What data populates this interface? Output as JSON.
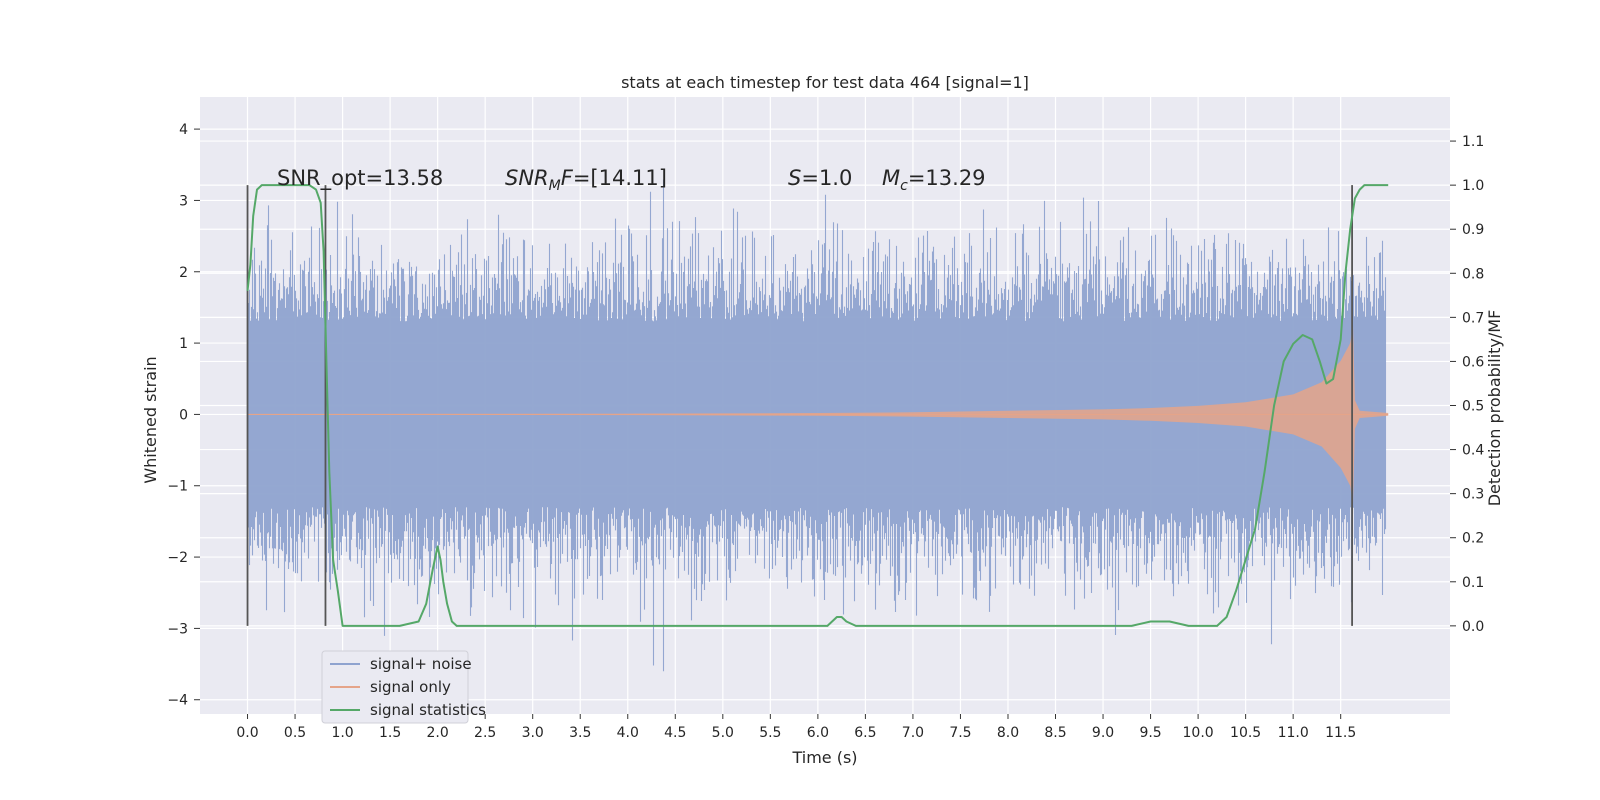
{
  "chart_data": {
    "type": "line",
    "title": "stats at each timestep for test data 464 [signal=1]",
    "xlabel": "Time (s)",
    "ylabel_left": "Whitened strain",
    "ylabel_right": "Detection probability/MF",
    "xlim": [
      -0.5,
      12.65
    ],
    "ylim_left": [
      -4.2,
      4.45
    ],
    "ylim_right": [
      -0.2,
      1.2
    ],
    "xticks": [
      "0.0",
      "0.5",
      "1.0",
      "1.5",
      "2.0",
      "2.5",
      "3.0",
      "3.5",
      "4.0",
      "4.5",
      "5.0",
      "5.5",
      "6.0",
      "6.5",
      "7.0",
      "7.5",
      "8.0",
      "8.5",
      "9.0",
      "9.5",
      "10.0",
      "10.5",
      "11.0",
      "11.5"
    ],
    "yticks_left": [
      "−4",
      "−3",
      "−2",
      "−1",
      "0",
      "1",
      "2",
      "3",
      "4"
    ],
    "yticks_right": [
      "0.0",
      "0.1",
      "0.2",
      "0.3",
      "0.4",
      "0.5",
      "0.6",
      "0.7",
      "0.8",
      "0.9",
      "1.0",
      "1.1"
    ],
    "grid": true,
    "legend_position": "lower-left",
    "legend": [
      "signal+ noise",
      "signal only",
      "signal statistics"
    ],
    "colors": {
      "background": "#eaeaf2",
      "grid": "#ffffff",
      "noise": "#8fa3cf",
      "signal": "#e5a489",
      "statistics": "#55a868",
      "vline": "#555555"
    },
    "annotations": {
      "snr_opt": "SNR_opt=13.58",
      "snr_mf": "SNR_MF=[14.11]",
      "s": "S=1.0",
      "mc": "M_c=13.29"
    },
    "series": [
      {
        "name": "signal statistics",
        "axis": "right",
        "x": [
          0.0,
          0.03,
          0.06,
          0.1,
          0.15,
          0.25,
          0.4,
          0.55,
          0.65,
          0.72,
          0.77,
          0.8,
          0.83,
          0.86,
          0.9,
          0.95,
          1.0,
          1.1,
          1.3,
          1.6,
          1.8,
          1.88,
          1.95,
          2.0,
          2.03,
          2.06,
          2.1,
          2.15,
          2.2,
          2.3,
          2.5,
          3.0,
          4.0,
          5.0,
          5.5,
          6.0,
          6.1,
          6.2,
          6.25,
          6.3,
          6.4,
          6.6,
          7.0,
          7.5,
          7.8,
          8.0,
          8.5,
          9.0,
          9.3,
          9.5,
          9.7,
          9.9,
          10.1,
          10.2,
          10.3,
          10.4,
          10.5,
          10.6,
          10.7,
          10.8,
          10.9,
          11.0,
          11.1,
          11.2,
          11.28,
          11.35,
          11.42,
          11.5,
          11.55,
          11.6,
          11.65,
          11.7,
          11.75,
          11.8,
          11.85,
          11.9,
          12.0
        ],
        "values": [
          0.76,
          0.82,
          0.93,
          0.99,
          1.0,
          1.0,
          1.0,
          1.0,
          1.0,
          0.99,
          0.96,
          0.85,
          0.6,
          0.35,
          0.15,
          0.08,
          0.0,
          0.0,
          0.0,
          0.0,
          0.01,
          0.05,
          0.13,
          0.18,
          0.15,
          0.1,
          0.05,
          0.01,
          0.0,
          0.0,
          0.0,
          0.0,
          0.0,
          0.0,
          0.0,
          0.0,
          0.0,
          0.02,
          0.02,
          0.01,
          0.0,
          0.0,
          0.0,
          0.0,
          0.0,
          0.0,
          0.0,
          0.0,
          0.0,
          0.01,
          0.01,
          0.0,
          0.0,
          0.0,
          0.02,
          0.08,
          0.15,
          0.22,
          0.35,
          0.5,
          0.6,
          0.64,
          0.66,
          0.65,
          0.6,
          0.55,
          0.56,
          0.65,
          0.8,
          0.9,
          0.97,
          0.99,
          1.0,
          1.0,
          1.0,
          1.0,
          1.0
        ]
      },
      {
        "name": "signal only",
        "axis": "left",
        "envelope": {
          "x": [
            0.0,
            2.0,
            4.0,
            6.0,
            7.0,
            8.0,
            9.0,
            9.5,
            10.0,
            10.5,
            11.0,
            11.3,
            11.5,
            11.6,
            11.63,
            11.65,
            11.7,
            12.0
          ],
          "values": [
            0.005,
            0.007,
            0.01,
            0.02,
            0.03,
            0.05,
            0.07,
            0.09,
            0.12,
            0.17,
            0.28,
            0.45,
            0.75,
            1.0,
            1.25,
            0.2,
            0.05,
            0.02
          ]
        }
      },
      {
        "name": "signal+ noise",
        "axis": "left",
        "x_range": [
          0.0,
          11.98
        ],
        "core_amplitude": 1.3,
        "tail_amplitude": 3.6
      }
    ],
    "vlines": [
      0.0,
      0.82,
      11.62
    ]
  }
}
